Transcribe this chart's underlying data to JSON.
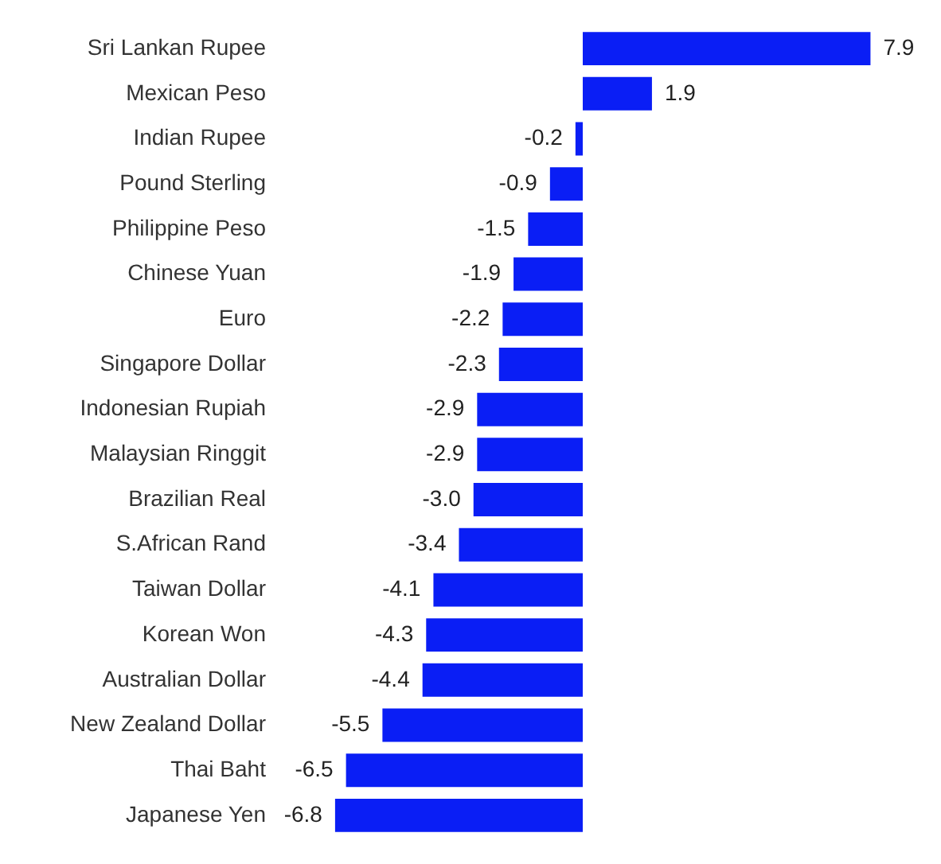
{
  "chart_data": {
    "type": "bar",
    "orientation": "horizontal",
    "categories": [
      "Sri Lankan Rupee",
      "Mexican Peso",
      "Indian Rupee",
      "Pound Sterling",
      "Philippine Peso",
      "Chinese Yuan",
      "Euro",
      "Singapore Dollar",
      "Indonesian Rupiah",
      "Malaysian Ringgit",
      "Brazilian Real",
      "S.African Rand",
      "Taiwan Dollar",
      "Korean Won",
      "Australian Dollar",
      "New Zealand Dollar",
      "Thai Baht",
      "Japanese Yen"
    ],
    "values": [
      7.9,
      1.9,
      -0.2,
      -0.9,
      -1.5,
      -1.9,
      -2.2,
      -2.3,
      -2.9,
      -2.9,
      -3.0,
      -3.4,
      -4.1,
      -4.3,
      -4.4,
      -5.5,
      -6.5,
      -6.8
    ],
    "value_labels": [
      "7.9",
      "1.9",
      "-0.2",
      "-0.9",
      "-1.5",
      "-1.9",
      "-2.2",
      "-2.3",
      "-2.9",
      "-2.9",
      "-3.0",
      "-3.4",
      "-4.1",
      "-4.3",
      "-4.4",
      "-5.5",
      "-6.5",
      "-6.8"
    ],
    "color": "#0a1ef5",
    "tick_labels": "y",
    "legend": false
  }
}
